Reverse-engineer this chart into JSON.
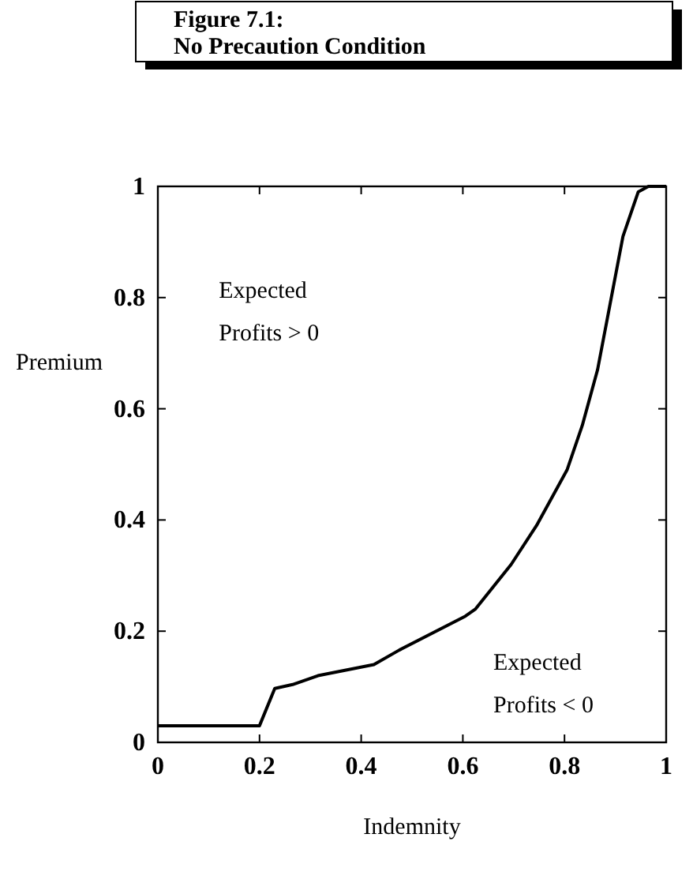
{
  "chart_data": {
    "type": "line",
    "title": "Figure 7.1:",
    "subtitle": "No Precaution Condition",
    "xlabel": "Indemnity",
    "ylabel": "Premium",
    "x": [
      0,
      0.2,
      0.23,
      0.265,
      0.315,
      0.425,
      0.475,
      0.605,
      0.625,
      0.695,
      0.745,
      0.805,
      0.835,
      0.865,
      0.89,
      0.915,
      0.945,
      0.965,
      1
    ],
    "series": [
      {
        "color": "#000000",
        "values": [
          0.03,
          0.03,
          0.097,
          0.104,
          0.12,
          0.14,
          0.166,
          0.227,
          0.24,
          0.32,
          0.39,
          0.49,
          0.57,
          0.67,
          0.79,
          0.91,
          0.99,
          1,
          1
        ]
      }
    ],
    "xlim": [
      0,
      1
    ],
    "ylim": [
      0,
      1
    ],
    "xticks": [
      0,
      0.2,
      0.4,
      0.6,
      0.8,
      1
    ],
    "yticks": [
      0,
      0.2,
      0.4,
      0.6,
      0.8,
      1
    ],
    "annotations": [
      "Expected\nProfits > 0",
      "Expected\nProfits < 0"
    ],
    "grid": false,
    "marker": "none",
    "line_style": "solid"
  }
}
